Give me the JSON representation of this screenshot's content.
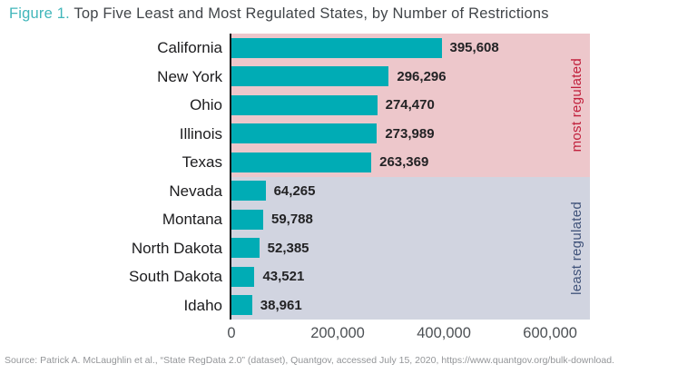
{
  "title": {
    "prefix": "Figure 1.",
    "rest": " Top Five Least and Most Regulated States, by Number of Restrictions",
    "prefix_color": "#41b6ba",
    "text_color": "#414549"
  },
  "source": "Source: Patrick A. McLaughlin et al., “State RegData 2.0” (dataset), Quantgov, accessed July 15, 2020, https://www.quantgov.org/bulk-download.",
  "chart_data": {
    "type": "bar",
    "orientation": "horizontal",
    "title": "Figure 1. Top Five Least and Most Regulated States, by Number of Restrictions",
    "xlabel": "",
    "ylabel": "",
    "categories": [
      "California",
      "New York",
      "Ohio",
      "Illinois",
      "Texas",
      "Nevada",
      "Montana",
      "North Dakota",
      "South Dakota",
      "Idaho"
    ],
    "values": [
      395608,
      296296,
      274470,
      273989,
      263369,
      64265,
      59788,
      52385,
      43521,
      38961
    ],
    "value_labels": [
      "395,608",
      "296,296",
      "274,470",
      "273,989",
      "263,369",
      "64,265",
      "59,788",
      "52,385",
      "43,521",
      "38,961"
    ],
    "groups": [
      "most",
      "most",
      "most",
      "most",
      "most",
      "least",
      "least",
      "least",
      "least",
      "least"
    ],
    "group_labels": {
      "most": "most regulated",
      "least": "least regulated"
    },
    "x_ticks": [
      0,
      200000,
      400000,
      600000
    ],
    "x_tick_labels": [
      "0",
      "200,000",
      "400,000",
      "600,000"
    ],
    "xlim": [
      0,
      675000
    ],
    "grid": false,
    "legend": "none",
    "bar_color": "#00acb5",
    "most_band_color": "#edc7cb",
    "least_band_color": "#d1d4e0",
    "most_label_color": "#c1203c",
    "least_label_color": "#40537a",
    "axis_line_color": "#141414"
  }
}
